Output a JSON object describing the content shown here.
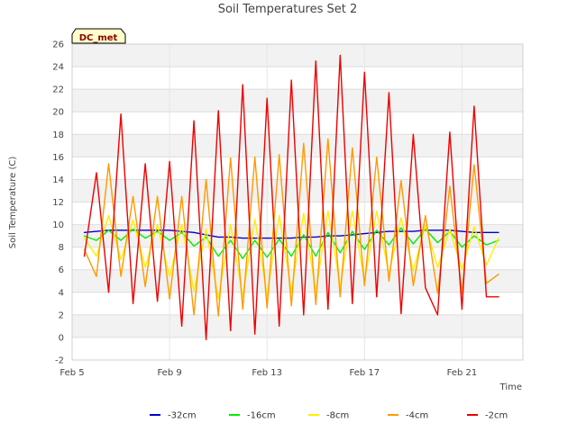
{
  "chart_data": {
    "type": "line",
    "title": "Soil Temperatures Set 2",
    "xlabel": "Time",
    "ylabel": "Soil Temperature (C)",
    "tag": "DC_met",
    "x_unit": "days",
    "x_start_label": "Feb 5",
    "xlim": [
      5,
      23.5
    ],
    "x_ticks": [
      5,
      9,
      13,
      17,
      21
    ],
    "x_tick_labels": [
      "Feb 5",
      "Feb 9",
      "Feb 13",
      "Feb 17",
      "Feb 21"
    ],
    "ylim": [
      -2,
      26
    ],
    "y_ticks": [
      -2,
      0,
      2,
      4,
      6,
      8,
      10,
      12,
      14,
      16,
      18,
      20,
      22,
      24,
      26
    ],
    "y_tick_labels": [
      "-2",
      "0",
      "2",
      "4",
      "6",
      "8",
      "10",
      "12",
      "14",
      "16",
      "18",
      "20",
      "22",
      "24",
      "26"
    ],
    "grid": true,
    "legend_position": "bottom",
    "x": [
      5.5,
      6.0,
      6.5,
      7.0,
      7.5,
      8.0,
      8.5,
      9.0,
      9.5,
      10.0,
      10.5,
      11.0,
      11.5,
      12.0,
      12.5,
      13.0,
      13.5,
      14.0,
      14.5,
      15.0,
      15.5,
      16.0,
      16.5,
      17.0,
      17.5,
      18.0,
      18.5,
      19.0,
      19.5,
      20.0,
      20.5,
      21.0,
      21.5,
      22.0,
      22.5
    ],
    "series": [
      {
        "name": "-32cm",
        "color": "#0000cc",
        "values": [
          9.3,
          9.4,
          9.5,
          9.5,
          9.5,
          9.5,
          9.5,
          9.5,
          9.4,
          9.3,
          9.1,
          8.9,
          8.9,
          8.8,
          8.8,
          8.8,
          8.8,
          8.8,
          8.9,
          8.9,
          9.0,
          9.0,
          9.1,
          9.2,
          9.3,
          9.4,
          9.4,
          9.4,
          9.5,
          9.5,
          9.5,
          9.4,
          9.3,
          9.3,
          9.3
        ]
      },
      {
        "name": "-16cm",
        "color": "#00ee00",
        "values": [
          9.0,
          8.6,
          9.5,
          8.6,
          9.6,
          8.8,
          9.4,
          8.6,
          9.3,
          8.1,
          8.9,
          7.2,
          8.6,
          7.0,
          8.6,
          7.1,
          8.7,
          7.2,
          9.1,
          7.2,
          9.3,
          7.5,
          9.4,
          7.8,
          9.5,
          8.2,
          9.7,
          8.3,
          9.6,
          8.4,
          9.4,
          8.0,
          9.0,
          8.2,
          8.6
        ]
      },
      {
        "name": "-8cm",
        "color": "#ffee00",
        "values": [
          8.8,
          7.2,
          10.8,
          6.9,
          10.4,
          6.2,
          10.0,
          5.4,
          10.0,
          4.1,
          9.6,
          3.4,
          10.0,
          3.6,
          10.5,
          3.7,
          10.8,
          4.1,
          11.0,
          4.0,
          11.2,
          4.5,
          11.2,
          5.0,
          11.2,
          5.6,
          10.6,
          5.9,
          10.0,
          6.2,
          9.6,
          6.0,
          9.8,
          6.4,
          8.8
        ]
      },
      {
        "name": "-4cm",
        "color": "#ff9900",
        "values": [
          7.8,
          5.4,
          15.4,
          5.4,
          12.5,
          4.5,
          12.5,
          3.4,
          12.5,
          2.0,
          14.0,
          1.9,
          15.9,
          2.5,
          16.0,
          2.6,
          16.2,
          2.8,
          17.2,
          2.9,
          17.6,
          3.6,
          16.8,
          4.6,
          16.0,
          5.0,
          13.9,
          4.6,
          10.8,
          3.9,
          13.4,
          3.9,
          15.3,
          4.8,
          5.6
        ]
      },
      {
        "name": "-2cm",
        "color": "#ee0000",
        "values": [
          7.2,
          14.6,
          4.0,
          19.8,
          3.0,
          15.4,
          3.2,
          15.6,
          1.0,
          19.2,
          -0.2,
          20.1,
          0.6,
          22.4,
          0.3,
          21.2,
          1.0,
          22.8,
          2.0,
          24.5,
          2.5,
          25.0,
          3.0,
          23.5,
          3.6,
          21.7,
          2.1,
          18.0,
          4.4,
          2.0,
          18.2,
          2.5,
          20.5,
          3.6,
          3.6
        ]
      }
    ]
  }
}
